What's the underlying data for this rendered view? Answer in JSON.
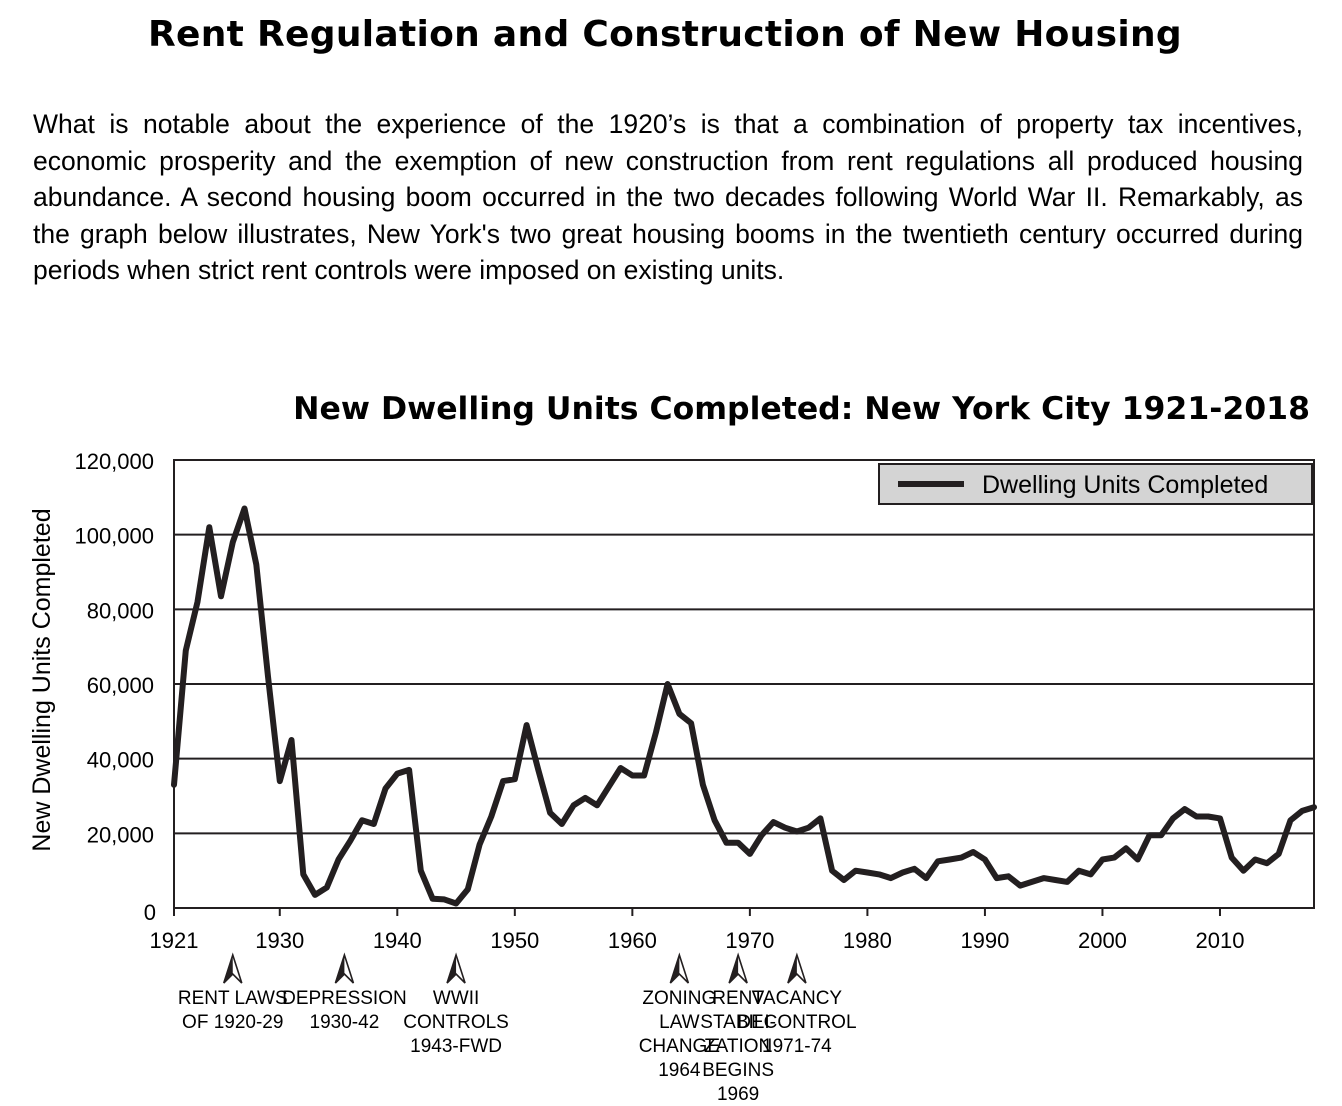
{
  "page": {
    "title": "Rent Regulation and Construction of New Housing",
    "intro": "What is notable about the experience of the 1920’s is that a combination of property tax incentives, economic prosperity and the exemption of new construction from rent regulations all produced housing abundance.  A second housing boom occurred in the two decades following World War II. Remarkably, as the graph below illustrates, New York's two great housing booms in the twentieth century occurred during periods when strict rent controls were imposed on existing units."
  },
  "chart_data": {
    "type": "line",
    "title": "New Dwelling Units Completed: New York City 1921-2018",
    "xlabel": "",
    "ylabel": "New Dwelling Units Completed",
    "xlim": [
      1921,
      2018
    ],
    "ylim": [
      0,
      120000
    ],
    "yticks": [
      0,
      20000,
      40000,
      60000,
      80000,
      100000,
      120000
    ],
    "ytick_labels": [
      "0",
      "20,000",
      "40,000",
      "60,000",
      "80,000",
      "100,000",
      "120,000"
    ],
    "xticks": [
      1921,
      1930,
      1940,
      1950,
      1960,
      1970,
      1980,
      1990,
      2000,
      2010
    ],
    "xtick_labels": [
      "1921",
      "1930",
      "1940",
      "1950",
      "1960",
      "1970",
      "1980",
      "1990",
      "2000",
      "2010"
    ],
    "grid": "horizontal",
    "legend": "top-right",
    "series": [
      {
        "name": "Dwelling Units Completed",
        "color": "#231f20",
        "x": [
          1921,
          1922,
          1923,
          1924,
          1925,
          1926,
          1927,
          1928,
          1929,
          1930,
          1931,
          1932,
          1933,
          1934,
          1935,
          1936,
          1937,
          1938,
          1939,
          1940,
          1941,
          1942,
          1943,
          1944,
          1945,
          1946,
          1947,
          1948,
          1949,
          1950,
          1951,
          1952,
          1953,
          1954,
          1955,
          1956,
          1957,
          1958,
          1959,
          1960,
          1961,
          1962,
          1963,
          1964,
          1965,
          1966,
          1967,
          1968,
          1969,
          1970,
          1971,
          1972,
          1973,
          1974,
          1975,
          1976,
          1977,
          1978,
          1979,
          1980,
          1981,
          1982,
          1983,
          1984,
          1985,
          1986,
          1987,
          1988,
          1989,
          1990,
          1991,
          1992,
          1993,
          1994,
          1995,
          1996,
          1997,
          1998,
          1999,
          2000,
          2001,
          2002,
          2003,
          2004,
          2005,
          2006,
          2007,
          2008,
          2009,
          2010,
          2011,
          2012,
          2013,
          2014,
          2015,
          2016,
          2017,
          2018
        ],
        "values": [
          33000,
          69000,
          82000,
          102000,
          83500,
          98000,
          107000,
          92000,
          62000,
          34000,
          45000,
          9000,
          3500,
          5500,
          13000,
          18000,
          23500,
          22500,
          32000,
          36000,
          37000,
          10000,
          2500,
          2300,
          1200,
          5000,
          17000,
          24500,
          34000,
          34500,
          49000,
          37000,
          25500,
          22500,
          27500,
          29500,
          27500,
          32500,
          37500,
          35500,
          35500,
          47000,
          60000,
          52000,
          49500,
          33000,
          23500,
          17500,
          17500,
          14500,
          19500,
          23000,
          21500,
          20500,
          21500,
          24000,
          10000,
          7500,
          10000,
          9500,
          9000,
          8000,
          9500,
          10500,
          8000,
          12500,
          13000,
          13500,
          15000,
          13000,
          8000,
          8500,
          6000,
          7000,
          8000,
          7500,
          7000,
          10000,
          9000,
          13000,
          13500,
          16000,
          13000,
          19500,
          19500,
          24000,
          26500,
          24500,
          24500,
          24000,
          13500,
          10000,
          13000,
          12000,
          14500,
          23500,
          26000,
          27000
        ]
      }
    ],
    "annotations": [
      {
        "x": 1926,
        "lines": [
          "RENT LAWS",
          "OF 1920-29"
        ]
      },
      {
        "x": 1935.5,
        "lines": [
          "DEPRESSION",
          "1930-42"
        ]
      },
      {
        "x": 1945,
        "lines": [
          "WWII",
          "CONTROLS",
          "1943-FWD"
        ]
      },
      {
        "x": 1964,
        "lines": [
          "ZONING",
          "LAW",
          "CHANGE",
          "1964"
        ]
      },
      {
        "x": 1969,
        "lines": [
          "RENT",
          "STABILI-",
          "ZATION",
          "BEGINS",
          "1969"
        ]
      },
      {
        "x": 1974,
        "lines": [
          "VACANCY",
          "DECONTROL",
          "1971-74"
        ]
      }
    ]
  }
}
